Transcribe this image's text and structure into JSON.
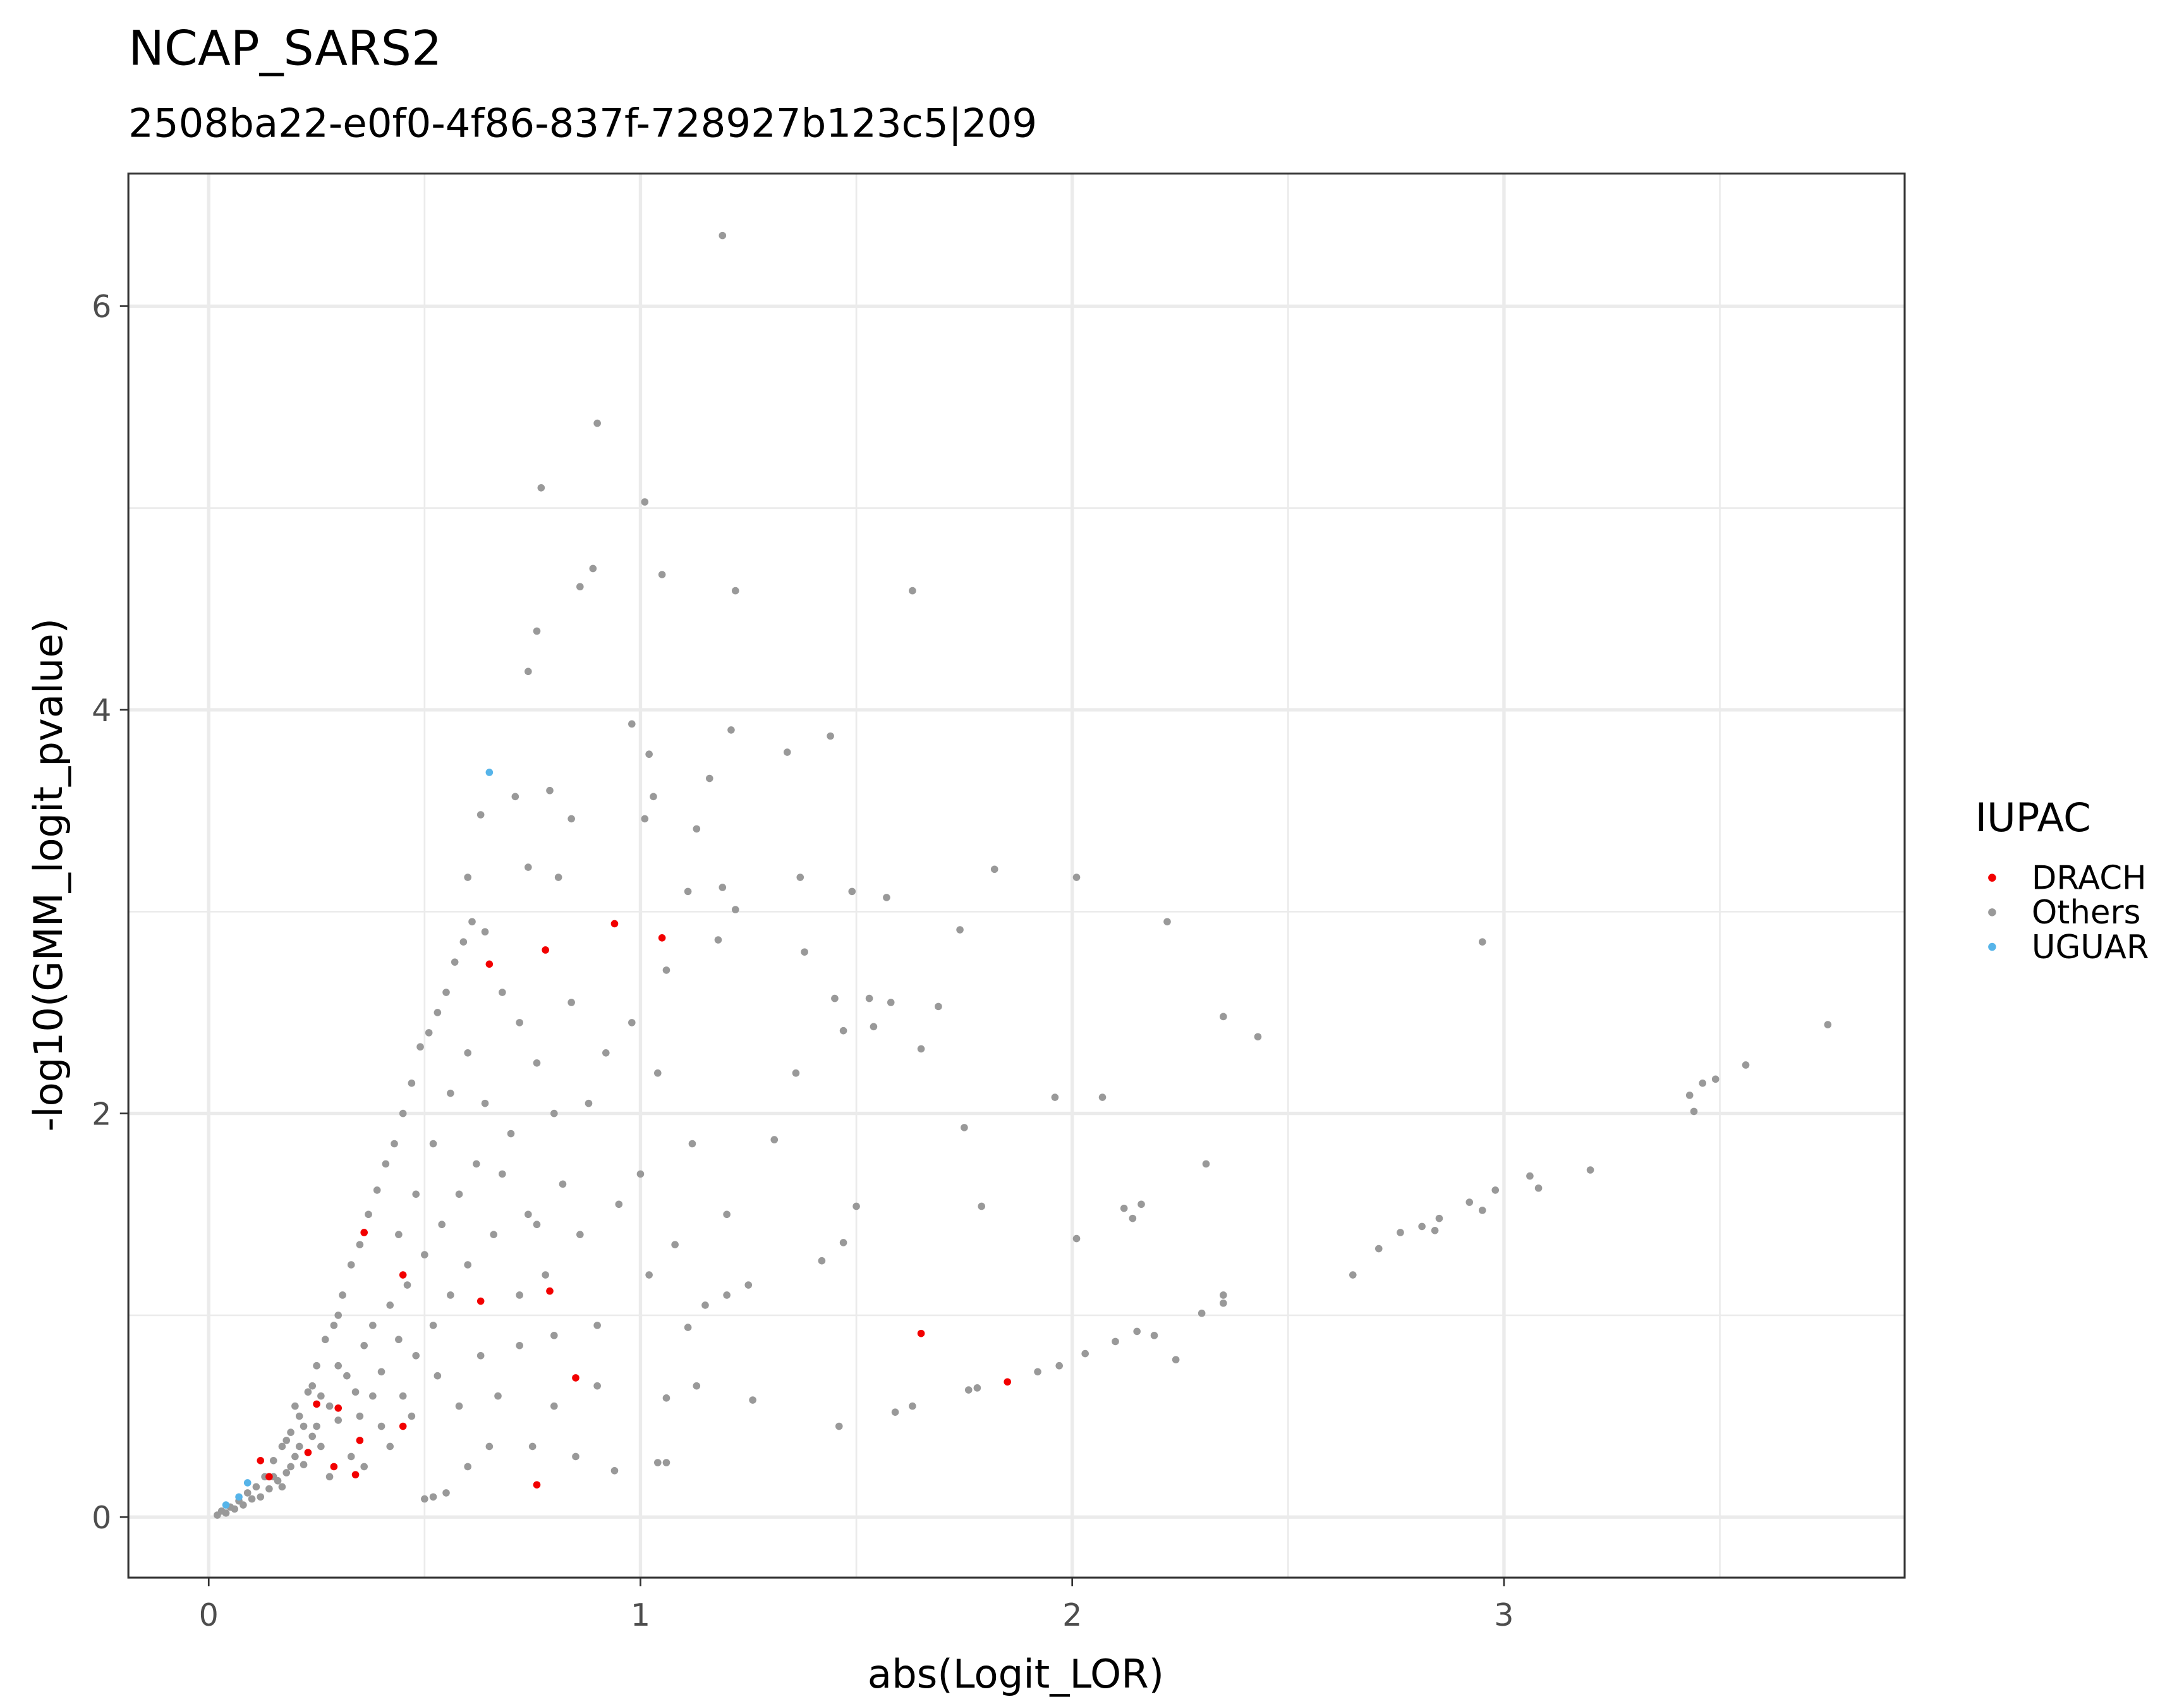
{
  "chart_data": {
    "type": "scatter",
    "title": "NCAP_SARS2",
    "subtitle": "2508ba22-e0f0-4f86-837f-728927b123c5|209",
    "x_label": "abs(Logit_LOR)",
    "y_label": "-log10(GMM_logit_pvalue)",
    "legend_title": "IUPAC",
    "xlim": [
      -0.186,
      3.928
    ],
    "ylim": [
      -0.3,
      6.657
    ],
    "xticks": [
      0,
      1,
      2,
      3
    ],
    "yticks": [
      0,
      2,
      4,
      6
    ],
    "grid": true,
    "series": [
      {
        "name": "DRACH",
        "color": "#f20000",
        "x": [
          0.94,
          1.05,
          0.65,
          0.78,
          0.36,
          0.45,
          0.79,
          0.63,
          1.65,
          1.85,
          0.85,
          0.45,
          0.35,
          0.34,
          0.76,
          0.25,
          0.3,
          0.29,
          0.14,
          0.12,
          0.23
        ],
        "values": [
          2.94,
          2.87,
          2.74,
          2.81,
          1.41,
          1.2,
          1.12,
          1.07,
          0.91,
          0.67,
          0.69,
          0.45,
          0.38,
          0.21,
          0.16,
          0.56,
          0.54,
          0.25,
          0.2,
          0.28,
          0.32
        ]
      },
      {
        "name": "Others",
        "color": "#999999",
        "x": [
          1.19,
          0.9,
          0.77,
          1.01,
          0.89,
          0.86,
          1.05,
          1.22,
          1.63,
          0.76,
          0.74,
          0.98,
          1.21,
          1.44,
          1.34,
          1.02,
          1.16,
          1.03,
          0.79,
          0.71,
          0.63,
          0.84,
          1.01,
          1.13,
          1.82,
          2.01,
          1.37,
          1.49,
          1.57,
          1.19,
          1.11,
          0.6,
          0.74,
          0.81,
          2.22,
          2.95,
          1.74,
          1.22,
          1.18,
          1.38,
          1.06,
          1.45,
          1.53,
          1.58,
          1.69,
          1.47,
          1.54,
          1.65,
          2.35,
          2.43,
          3.75,
          3.56,
          3.49,
          3.46,
          3.43,
          3.44,
          2.07,
          1.96,
          1.36,
          1.31,
          1.75,
          2.31,
          3.2,
          3.06,
          3.08,
          2.98,
          2.92,
          2.95,
          2.85,
          2.81,
          2.84,
          2.76,
          2.71,
          2.65,
          2.35,
          2.3,
          2.15,
          2.1,
          2.03,
          1.97,
          1.92,
          1.78,
          1.76,
          2.24,
          2.35,
          2.19,
          2.16,
          2.12,
          2.14,
          2.01,
          1.79,
          1.5,
          1.47,
          1.42,
          1.63,
          1.59,
          1.46,
          1.26,
          1.25,
          1.2,
          1.11,
          1.06,
          1.13,
          1.04,
          0.94,
          1.06,
          0.02,
          0.03,
          0.04,
          0.05,
          0.06,
          0.07,
          0.08,
          0.09,
          0.1,
          0.11,
          0.12,
          0.13,
          0.14,
          0.15,
          0.16,
          0.17,
          0.18,
          0.19,
          0.2,
          0.21,
          0.22,
          0.23,
          0.24,
          0.25,
          0.26,
          0.27,
          0.28,
          0.29,
          0.3,
          0.31,
          0.32,
          0.33,
          0.34,
          0.35,
          0.36,
          0.37,
          0.38,
          0.39,
          0.4,
          0.41,
          0.42,
          0.43,
          0.44,
          0.45,
          0.46,
          0.47,
          0.48,
          0.49,
          0.5,
          0.51,
          0.52,
          0.53,
          0.54,
          0.55,
          0.56,
          0.57,
          0.58,
          0.59,
          0.6,
          0.61,
          0.62,
          0.64,
          0.66,
          0.68,
          0.7,
          0.72,
          0.74,
          0.76,
          0.78,
          0.8,
          0.82,
          0.84,
          0.86,
          0.88,
          0.9,
          0.92,
          0.95,
          0.98,
          1.0,
          1.02,
          1.04,
          1.08,
          1.12,
          1.15,
          1.2,
          0.5,
          0.52,
          0.55,
          0.6,
          0.65,
          0.45,
          0.4,
          0.35,
          0.3,
          0.25,
          0.2,
          0.22,
          0.18,
          0.28,
          0.33,
          0.38,
          0.42,
          0.47,
          0.53,
          0.58,
          0.63,
          0.67,
          0.72,
          0.75,
          0.8,
          0.85,
          0.9,
          0.3,
          0.26,
          0.24,
          0.21,
          0.19,
          0.17,
          0.15,
          0.36,
          0.44,
          0.48,
          0.52,
          0.56,
          0.6,
          0.64,
          0.68,
          0.72,
          0.76,
          0.8
        ],
        "values": [
          6.35,
          5.42,
          5.1,
          5.03,
          4.7,
          4.61,
          4.67,
          4.59,
          4.59,
          4.39,
          4.19,
          3.93,
          3.9,
          3.87,
          3.79,
          3.78,
          3.66,
          3.57,
          3.6,
          3.57,
          3.48,
          3.46,
          3.46,
          3.41,
          3.21,
          3.17,
          3.17,
          3.1,
          3.07,
          3.12,
          3.1,
          3.17,
          3.22,
          3.17,
          2.95,
          2.85,
          2.91,
          3.01,
          2.86,
          2.8,
          2.71,
          2.57,
          2.57,
          2.55,
          2.53,
          2.41,
          2.43,
          2.32,
          2.48,
          2.38,
          2.44,
          2.24,
          2.17,
          2.15,
          2.09,
          2.01,
          2.08,
          2.08,
          2.2,
          1.87,
          1.93,
          1.75,
          1.72,
          1.69,
          1.63,
          1.62,
          1.56,
          1.52,
          1.48,
          1.44,
          1.42,
          1.41,
          1.33,
          1.2,
          1.1,
          1.01,
          0.92,
          0.87,
          0.81,
          0.75,
          0.72,
          0.64,
          0.63,
          0.78,
          1.06,
          0.9,
          1.55,
          1.53,
          1.48,
          1.38,
          1.54,
          1.54,
          1.36,
          1.27,
          0.55,
          0.52,
          0.45,
          0.58,
          1.15,
          1.1,
          0.94,
          0.59,
          0.65,
          0.27,
          0.23,
          0.27,
          0.01,
          0.03,
          0.02,
          0.05,
          0.04,
          0.08,
          0.06,
          0.12,
          0.09,
          0.15,
          0.1,
          0.2,
          0.14,
          0.28,
          0.18,
          0.35,
          0.22,
          0.42,
          0.3,
          0.5,
          0.26,
          0.62,
          0.4,
          0.75,
          0.35,
          0.88,
          0.55,
          0.95,
          0.48,
          1.1,
          0.7,
          1.25,
          0.62,
          1.35,
          0.85,
          1.5,
          0.95,
          1.62,
          0.72,
          1.75,
          1.05,
          1.85,
          0.88,
          2.0,
          1.15,
          2.15,
          0.8,
          2.33,
          1.3,
          2.4,
          0.95,
          2.5,
          1.45,
          2.6,
          1.1,
          2.75,
          1.6,
          2.85,
          1.25,
          2.95,
          1.75,
          2.9,
          1.4,
          2.6,
          1.9,
          2.45,
          1.5,
          2.25,
          1.2,
          2.0,
          1.65,
          2.55,
          1.4,
          2.05,
          0.95,
          2.3,
          1.55,
          2.45,
          1.7,
          1.2,
          2.2,
          1.35,
          1.85,
          1.05,
          1.5,
          0.09,
          0.1,
          0.12,
          0.25,
          0.35,
          0.6,
          0.45,
          0.5,
          0.75,
          0.45,
          0.55,
          0.45,
          0.38,
          0.2,
          0.3,
          0.6,
          0.35,
          0.5,
          0.7,
          0.55,
          0.8,
          0.6,
          0.85,
          0.35,
          0.55,
          0.3,
          0.65,
          1.0,
          0.6,
          0.65,
          0.35,
          0.25,
          0.15,
          0.2,
          0.25,
          1.4,
          1.6,
          1.85,
          2.1,
          2.3,
          2.05,
          1.7,
          1.1,
          1.45,
          0.9
        ]
      },
      {
        "name": "UGUAR",
        "color": "#56b4e9",
        "x": [
          0.65,
          0.09,
          0.07,
          0.04
        ],
        "values": [
          3.69,
          0.17,
          0.1,
          0.06
        ]
      }
    ]
  }
}
